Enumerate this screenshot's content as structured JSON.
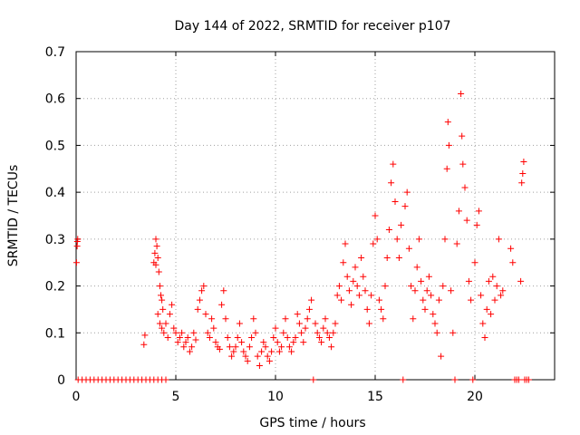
{
  "chart_data": {
    "type": "scatter",
    "title": "Day 144 of 2022, SRMTID for receiver p107",
    "xlabel": "GPS time / hours",
    "ylabel": "SRMTID / TECUs",
    "xlim": [
      0,
      24
    ],
    "ylim": [
      0,
      0.7
    ],
    "x_ticks": [
      0,
      5,
      10,
      15,
      20
    ],
    "x_tick_labels": [
      "0",
      "5",
      "10",
      "15",
      "20"
    ],
    "y_ticks": [
      0,
      0.1,
      0.2,
      0.3,
      0.4,
      0.5,
      0.6,
      0.7
    ],
    "y_tick_labels": [
      "0",
      "0.1",
      "0.2",
      "0.3",
      "0.4",
      "0.5",
      "0.6",
      "0.7"
    ],
    "grid": true,
    "marker": "+",
    "color": "#ff0000",
    "series": [
      {
        "name": "SRMTID",
        "points": [
          [
            0.02,
            0.25
          ],
          [
            0.05,
            0.285
          ],
          [
            0.06,
            0.295
          ],
          [
            0.08,
            0.3
          ],
          [
            0.1,
            0
          ],
          [
            0.3,
            0
          ],
          [
            0.5,
            0
          ],
          [
            0.7,
            0
          ],
          [
            0.9,
            0
          ],
          [
            1.1,
            0
          ],
          [
            1.3,
            0
          ],
          [
            1.5,
            0
          ],
          [
            1.7,
            0
          ],
          [
            1.9,
            0
          ],
          [
            2.1,
            0
          ],
          [
            2.3,
            0
          ],
          [
            2.5,
            0
          ],
          [
            2.7,
            0
          ],
          [
            2.9,
            0
          ],
          [
            3.1,
            0
          ],
          [
            3.3,
            0
          ],
          [
            3.5,
            0
          ],
          [
            3.7,
            0
          ],
          [
            3.9,
            0
          ],
          [
            4.1,
            0
          ],
          [
            4.3,
            0
          ],
          [
            4.5,
            0
          ],
          [
            3.4,
            0.075
          ],
          [
            3.45,
            0.095
          ],
          [
            3.9,
            0.25
          ],
          [
            3.95,
            0.27
          ],
          [
            4.0,
            0.3
          ],
          [
            4.05,
            0.285
          ],
          [
            4.1,
            0.26
          ],
          [
            4.0,
            0.245
          ],
          [
            4.15,
            0.23
          ],
          [
            4.2,
            0.2
          ],
          [
            4.25,
            0.18
          ],
          [
            4.3,
            0.17
          ],
          [
            4.35,
            0.15
          ],
          [
            4.1,
            0.14
          ],
          [
            4.2,
            0.12
          ],
          [
            4.3,
            0.11
          ],
          [
            4.4,
            0.1
          ],
          [
            4.5,
            0.12
          ],
          [
            4.6,
            0.09
          ],
          [
            4.7,
            0.14
          ],
          [
            4.8,
            0.16
          ],
          [
            4.9,
            0.11
          ],
          [
            5.0,
            0.1
          ],
          [
            5.1,
            0.08
          ],
          [
            5.2,
            0.09
          ],
          [
            5.3,
            0.1
          ],
          [
            5.4,
            0.07
          ],
          [
            5.5,
            0.08
          ],
          [
            5.6,
            0.09
          ],
          [
            5.7,
            0.06
          ],
          [
            5.8,
            0.07
          ],
          [
            5.9,
            0.1
          ],
          [
            6.0,
            0.085
          ],
          [
            6.1,
            0.15
          ],
          [
            6.2,
            0.17
          ],
          [
            6.3,
            0.19
          ],
          [
            6.4,
            0.2
          ],
          [
            6.5,
            0.14
          ],
          [
            6.6,
            0.1
          ],
          [
            6.7,
            0.09
          ],
          [
            6.8,
            0.13
          ],
          [
            6.9,
            0.11
          ],
          [
            7.0,
            0.08
          ],
          [
            7.1,
            0.07
          ],
          [
            7.2,
            0.065
          ],
          [
            7.3,
            0.16
          ],
          [
            7.4,
            0.19
          ],
          [
            7.5,
            0.13
          ],
          [
            7.6,
            0.09
          ],
          [
            7.7,
            0.07
          ],
          [
            7.8,
            0.05
          ],
          [
            7.9,
            0.06
          ],
          [
            8.0,
            0.07
          ],
          [
            8.1,
            0.09
          ],
          [
            8.2,
            0.12
          ],
          [
            8.3,
            0.08
          ],
          [
            8.4,
            0.06
          ],
          [
            8.5,
            0.05
          ],
          [
            8.6,
            0.04
          ],
          [
            8.7,
            0.07
          ],
          [
            8.8,
            0.09
          ],
          [
            8.9,
            0.13
          ],
          [
            9.0,
            0.1
          ],
          [
            9.1,
            0.05
          ],
          [
            9.2,
            0.03
          ],
          [
            9.3,
            0.06
          ],
          [
            9.4,
            0.08
          ],
          [
            9.5,
            0.07
          ],
          [
            9.6,
            0.05
          ],
          [
            9.7,
            0.04
          ],
          [
            9.8,
            0.06
          ],
          [
            9.9,
            0.09
          ],
          [
            10.0,
            0.11
          ],
          [
            10.1,
            0.08
          ],
          [
            10.2,
            0.06
          ],
          [
            10.3,
            0.07
          ],
          [
            10.4,
            0.1
          ],
          [
            10.5,
            0.13
          ],
          [
            10.6,
            0.09
          ],
          [
            10.7,
            0.07
          ],
          [
            10.8,
            0.06
          ],
          [
            10.9,
            0.08
          ],
          [
            11.0,
            0.09
          ],
          [
            11.1,
            0.14
          ],
          [
            11.2,
            0.12
          ],
          [
            11.3,
            0.1
          ],
          [
            11.4,
            0.08
          ],
          [
            11.5,
            0.11
          ],
          [
            11.6,
            0.13
          ],
          [
            11.7,
            0.15
          ],
          [
            11.8,
            0.17
          ],
          [
            11.9,
            0.0
          ],
          [
            12.0,
            0.12
          ],
          [
            12.1,
            0.1
          ],
          [
            12.2,
            0.09
          ],
          [
            12.3,
            0.08
          ],
          [
            12.4,
            0.11
          ],
          [
            12.5,
            0.13
          ],
          [
            12.6,
            0.1
          ],
          [
            12.7,
            0.09
          ],
          [
            12.8,
            0.07
          ],
          [
            12.9,
            0.1
          ],
          [
            13.0,
            0.12
          ],
          [
            13.1,
            0.18
          ],
          [
            13.2,
            0.2
          ],
          [
            13.3,
            0.17
          ],
          [
            13.4,
            0.25
          ],
          [
            13.5,
            0.29
          ],
          [
            13.6,
            0.22
          ],
          [
            13.7,
            0.19
          ],
          [
            13.8,
            0.16
          ],
          [
            13.9,
            0.21
          ],
          [
            14.0,
            0.24
          ],
          [
            14.1,
            0.2
          ],
          [
            14.2,
            0.18
          ],
          [
            14.3,
            0.26
          ],
          [
            14.4,
            0.22
          ],
          [
            14.5,
            0.19
          ],
          [
            14.6,
            0.15
          ],
          [
            14.7,
            0.12
          ],
          [
            14.8,
            0.18
          ],
          [
            14.9,
            0.29
          ],
          [
            15.0,
            0.35
          ],
          [
            15.1,
            0.3
          ],
          [
            15.2,
            0.17
          ],
          [
            15.3,
            0.15
          ],
          [
            15.4,
            0.13
          ],
          [
            15.5,
            0.2
          ],
          [
            15.6,
            0.26
          ],
          [
            15.7,
            0.32
          ],
          [
            15.8,
            0.42
          ],
          [
            15.9,
            0.46
          ],
          [
            16.0,
            0.38
          ],
          [
            16.1,
            0.3
          ],
          [
            16.2,
            0.26
          ],
          [
            16.3,
            0.33
          ],
          [
            16.4,
            0.0
          ],
          [
            16.5,
            0.37
          ],
          [
            16.6,
            0.4
          ],
          [
            16.7,
            0.28
          ],
          [
            16.8,
            0.2
          ],
          [
            16.9,
            0.13
          ],
          [
            17.0,
            0.19
          ],
          [
            17.1,
            0.24
          ],
          [
            17.2,
            0.3
          ],
          [
            17.3,
            0.21
          ],
          [
            17.4,
            0.17
          ],
          [
            17.5,
            0.15
          ],
          [
            17.6,
            0.19
          ],
          [
            17.7,
            0.22
          ],
          [
            17.8,
            0.18
          ],
          [
            17.9,
            0.14
          ],
          [
            18.0,
            0.12
          ],
          [
            18.1,
            0.1
          ],
          [
            18.2,
            0.17
          ],
          [
            18.3,
            0.05
          ],
          [
            18.4,
            0.2
          ],
          [
            18.5,
            0.3
          ],
          [
            18.6,
            0.45
          ],
          [
            18.65,
            0.55
          ],
          [
            18.7,
            0.5
          ],
          [
            18.8,
            0.19
          ],
          [
            18.9,
            0.1
          ],
          [
            19.0,
            0.0
          ],
          [
            19.1,
            0.29
          ],
          [
            19.2,
            0.36
          ],
          [
            19.3,
            0.61
          ],
          [
            19.35,
            0.52
          ],
          [
            19.4,
            0.46
          ],
          [
            19.5,
            0.41
          ],
          [
            19.6,
            0.34
          ],
          [
            19.7,
            0.21
          ],
          [
            19.8,
            0.17
          ],
          [
            19.9,
            0.0
          ],
          [
            20.0,
            0.25
          ],
          [
            20.1,
            0.33
          ],
          [
            20.2,
            0.36
          ],
          [
            20.3,
            0.18
          ],
          [
            20.4,
            0.12
          ],
          [
            20.5,
            0.09
          ],
          [
            20.6,
            0.15
          ],
          [
            20.7,
            0.21
          ],
          [
            20.8,
            0.14
          ],
          [
            20.9,
            0.22
          ],
          [
            21.0,
            0.17
          ],
          [
            21.1,
            0.2
          ],
          [
            21.2,
            0.3
          ],
          [
            21.3,
            0.18
          ],
          [
            21.4,
            0.19
          ],
          [
            21.8,
            0.28
          ],
          [
            21.9,
            0.25
          ],
          [
            22.0,
            0.0
          ],
          [
            22.1,
            0.0
          ],
          [
            22.2,
            0.0
          ],
          [
            22.3,
            0.21
          ],
          [
            22.35,
            0.42
          ],
          [
            22.4,
            0.44
          ],
          [
            22.45,
            0.465
          ],
          [
            22.5,
            0.0
          ],
          [
            22.6,
            0.0
          ],
          [
            22.7,
            0.0
          ]
        ]
      }
    ]
  }
}
